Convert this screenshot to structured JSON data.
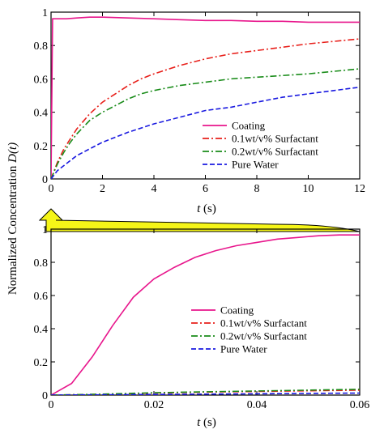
{
  "ylabel_text": "Normalized Concentration",
  "ylabel_var": "D(t)",
  "xlabel_var": "t",
  "xlabel_unit": " (s)",
  "series_styles": [
    {
      "name": "Coating",
      "color": "#e8168c",
      "dash": "solid"
    },
    {
      "name": "0.1wt/v% Surfactant",
      "color": "#e8201b",
      "dash": "dash-dot"
    },
    {
      "name": "0.2wt/v% Surfactant",
      "color": "#1a8c1a",
      "dash": "dash-dot"
    },
    {
      "name": "Pure Water",
      "color": "#1a1ae0",
      "dash": "dash"
    }
  ],
  "arrow_color": "#f5f518",
  "chart_data": [
    {
      "type": "line",
      "xlim": [
        0,
        12
      ],
      "ylim": [
        0,
        1
      ],
      "xticks": [
        0,
        2,
        4,
        6,
        8,
        10,
        12
      ],
      "yticks": [
        0,
        0.2,
        0.4,
        0.6,
        0.8,
        1
      ],
      "xlabel": "t (s)",
      "ylabel": "Normalized Concentration D(t)",
      "grid": false,
      "legend_position": "lower-right",
      "series": [
        {
          "name": "Coating",
          "x": [
            0,
            0.06,
            0.12,
            0.3,
            0.6,
            1,
            1.5,
            2,
            3,
            4,
            5,
            6,
            7,
            8,
            9,
            10,
            11,
            12
          ],
          "y": [
            0,
            0.96,
            0.96,
            0.96,
            0.96,
            0.965,
            0.97,
            0.97,
            0.965,
            0.96,
            0.955,
            0.95,
            0.95,
            0.945,
            0.945,
            0.94,
            0.94,
            0.94
          ]
        },
        {
          "name": "0.1wt/v% Surfactant",
          "x": [
            0,
            0.25,
            0.5,
            0.75,
            1,
            1.5,
            2,
            2.5,
            3,
            3.5,
            4,
            5,
            6,
            7,
            8,
            9,
            10,
            11,
            12
          ],
          "y": [
            0,
            0.1,
            0.18,
            0.24,
            0.3,
            0.39,
            0.46,
            0.51,
            0.56,
            0.6,
            0.63,
            0.68,
            0.72,
            0.75,
            0.77,
            0.79,
            0.81,
            0.825,
            0.84
          ]
        },
        {
          "name": "0.2wt/v% Surfactant",
          "x": [
            0,
            0.25,
            0.5,
            0.75,
            1,
            1.5,
            2,
            2.5,
            3,
            3.5,
            4,
            5,
            6,
            7,
            8,
            9,
            10,
            11,
            12
          ],
          "y": [
            0,
            0.09,
            0.16,
            0.22,
            0.27,
            0.35,
            0.4,
            0.44,
            0.48,
            0.51,
            0.53,
            0.56,
            0.58,
            0.6,
            0.61,
            0.62,
            0.63,
            0.645,
            0.66
          ]
        },
        {
          "name": "Pure Water",
          "x": [
            0,
            0.25,
            0.5,
            0.75,
            1,
            1.5,
            2,
            2.5,
            3,
            4,
            5,
            6,
            7,
            8,
            9,
            10,
            11,
            12
          ],
          "y": [
            0,
            0.05,
            0.08,
            0.11,
            0.14,
            0.18,
            0.22,
            0.25,
            0.28,
            0.33,
            0.37,
            0.41,
            0.43,
            0.46,
            0.49,
            0.51,
            0.53,
            0.55
          ]
        }
      ]
    },
    {
      "type": "line",
      "xlim": [
        0,
        0.06
      ],
      "ylim": [
        0,
        1
      ],
      "xticks": [
        0,
        0.02,
        0.04,
        0.06
      ],
      "yticks": [
        0,
        0.2,
        0.4,
        0.6,
        0.8,
        1
      ],
      "xlabel": "t (s)",
      "ylabel": "Normalized Concentration D(t)",
      "grid": false,
      "legend_position": "lower-right",
      "series": [
        {
          "name": "Coating",
          "x": [
            0,
            0.004,
            0.008,
            0.012,
            0.016,
            0.02,
            0.024,
            0.028,
            0.032,
            0.036,
            0.04,
            0.044,
            0.048,
            0.052,
            0.056,
            0.06
          ],
          "y": [
            0,
            0.07,
            0.23,
            0.42,
            0.59,
            0.7,
            0.77,
            0.83,
            0.87,
            0.9,
            0.92,
            0.94,
            0.95,
            0.96,
            0.965,
            0.965
          ]
        },
        {
          "name": "0.1wt/v% Surfactant",
          "x": [
            0,
            0.01,
            0.02,
            0.03,
            0.04,
            0.05,
            0.06
          ],
          "y": [
            0,
            0.005,
            0.012,
            0.018,
            0.022,
            0.026,
            0.03
          ]
        },
        {
          "name": "0.2wt/v% Surfactant",
          "x": [
            0,
            0.01,
            0.02,
            0.03,
            0.04,
            0.05,
            0.06
          ],
          "y": [
            0,
            0.006,
            0.014,
            0.02,
            0.025,
            0.03,
            0.035
          ]
        },
        {
          "name": "Pure Water",
          "x": [
            0,
            0.01,
            0.02,
            0.03,
            0.04,
            0.05,
            0.06
          ],
          "y": [
            0,
            0.002,
            0.004,
            0.006,
            0.008,
            0.01,
            0.012
          ]
        }
      ]
    }
  ]
}
